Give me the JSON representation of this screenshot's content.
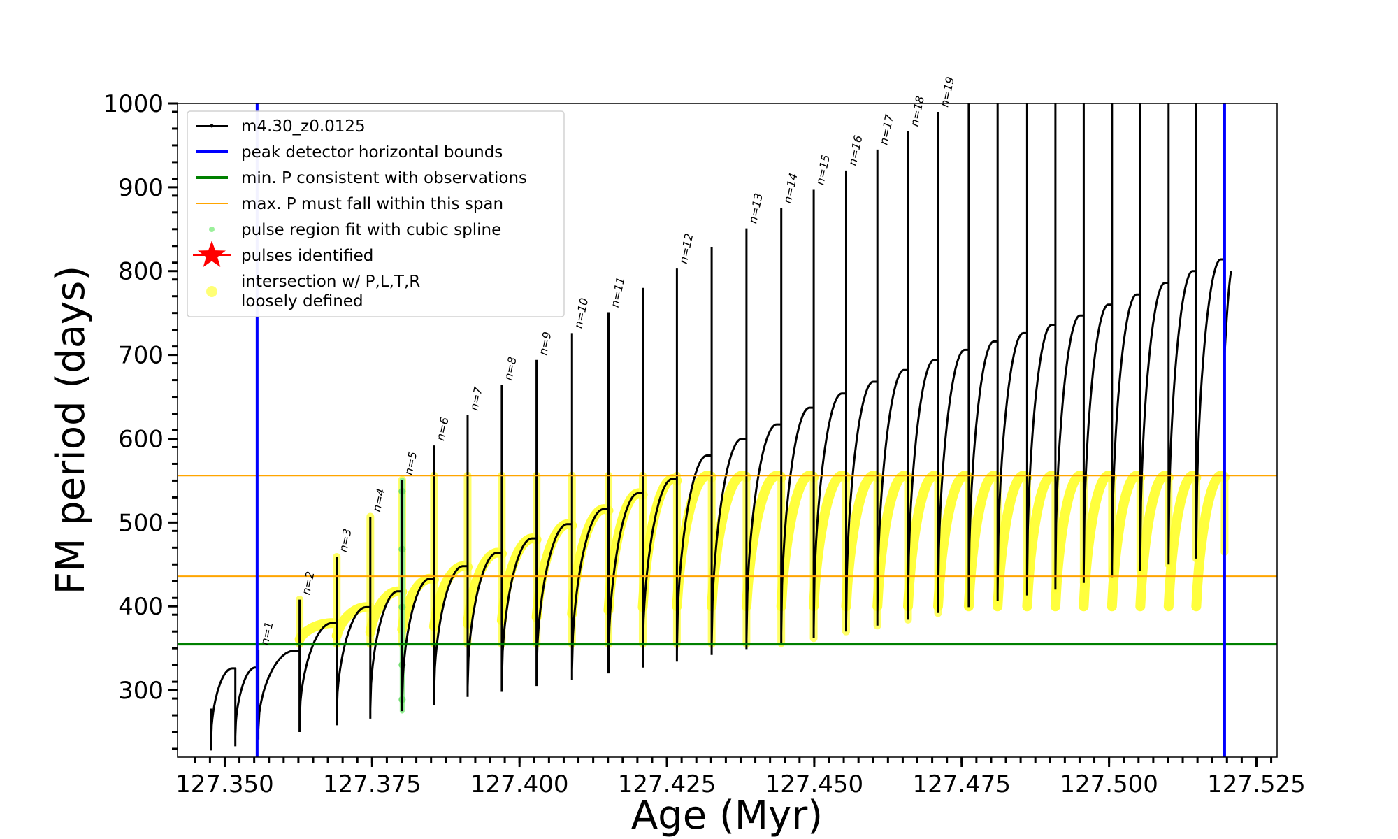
{
  "chart_data": {
    "type": "line",
    "title": "",
    "xlabel": "Age (Myr)",
    "ylabel": "FM period (days)",
    "xlim": [
      127.342,
      127.5285
    ],
    "ylim": [
      220,
      1000
    ],
    "x_ticks": [
      "127.350",
      "127.375",
      "127.400",
      "127.425",
      "127.450",
      "127.475",
      "127.500",
      "127.525"
    ],
    "y_ticks": [
      "300",
      "400",
      "500",
      "600",
      "700",
      "800",
      "900",
      "1000"
    ],
    "grid": false,
    "legend_position": "upper-left",
    "legend": [
      {
        "label": "m4.30_z0.0125",
        "style": "line-marker",
        "color": "#000000"
      },
      {
        "label": "peak detector horizontal bounds",
        "style": "line",
        "color": "#0000ff"
      },
      {
        "label": "min. P consistent with observations",
        "style": "line",
        "color": "#008000"
      },
      {
        "label": "max. P must fall within this span",
        "style": "thin-line",
        "color": "#ffa500"
      },
      {
        "label": "pulse region fit with cubic spline",
        "style": "dot",
        "color": "#90ee90"
      },
      {
        "label": "pulses identified",
        "style": "star",
        "color": "#ff0000"
      },
      {
        "label": "intersection w/ P,L,T,R",
        "label2": "loosely defined",
        "style": "dot",
        "color": "#ffff66"
      }
    ],
    "vertical_lines": [
      {
        "x": 127.3555,
        "color": "#0000ff"
      },
      {
        "x": 127.5196,
        "color": "#0000ff"
      }
    ],
    "horizontal_lines": [
      {
        "y": 355,
        "color": "#008000"
      },
      {
        "y": 436,
        "color": "#ffa500"
      },
      {
        "y": 556,
        "color": "#ffa500"
      }
    ],
    "pulses": [
      {
        "label": "",
        "x": 127.3477,
        "min": 228,
        "peak": 278,
        "top": 326
      },
      {
        "label": "",
        "x": 127.3518,
        "min": 233,
        "peak": 248,
        "top": 327
      },
      {
        "label": "n=1",
        "x": 127.3557,
        "min": 241,
        "peak": 348,
        "top": 347
      },
      {
        "label": "n=2",
        "x": 127.3627,
        "min": 250,
        "peak": 408,
        "top": 380
      },
      {
        "label": "n=3",
        "x": 127.369,
        "min": 258,
        "peak": 459,
        "top": 399
      },
      {
        "label": "n=4",
        "x": 127.3747,
        "min": 266,
        "peak": 507,
        "top": 418
      },
      {
        "label": "n=5",
        "x": 127.3801,
        "min": 275,
        "peak": 551,
        "top": 433
      },
      {
        "label": "n=6",
        "x": 127.3855,
        "min": 282,
        "peak": 592,
        "top": 448
      },
      {
        "label": "n=7",
        "x": 127.3912,
        "min": 292,
        "peak": 628,
        "top": 464
      },
      {
        "label": "n=8",
        "x": 127.397,
        "min": 298,
        "peak": 664,
        "top": 481
      },
      {
        "label": "n=9",
        "x": 127.4029,
        "min": 305,
        "peak": 694,
        "top": 498
      },
      {
        "label": "n=10",
        "x": 127.4089,
        "min": 312,
        "peak": 726,
        "top": 516
      },
      {
        "label": "n=11",
        "x": 127.4151,
        "min": 320,
        "peak": 751,
        "top": 535
      },
      {
        "label": "",
        "x": 127.4209,
        "min": 327,
        "peak": 780,
        "top": 552
      },
      {
        "label": "n=12",
        "x": 127.4267,
        "min": 334,
        "peak": 803,
        "top": 580
      },
      {
        "label": "",
        "x": 127.4326,
        "min": 342,
        "peak": 829,
        "top": 600
      },
      {
        "label": "n=13",
        "x": 127.4385,
        "min": 349,
        "peak": 851,
        "top": 617
      },
      {
        "label": "n=14",
        "x": 127.4444,
        "min": 356,
        "peak": 875,
        "top": 637
      },
      {
        "label": "n=15",
        "x": 127.4499,
        "min": 362,
        "peak": 897,
        "top": 654
      },
      {
        "label": "n=16",
        "x": 127.4554,
        "min": 370,
        "peak": 920,
        "top": 668
      },
      {
        "label": "n=17",
        "x": 127.4607,
        "min": 377,
        "peak": 945,
        "top": 682
      },
      {
        "label": "n=18",
        "x": 127.4659,
        "min": 384,
        "peak": 967,
        "top": 694
      },
      {
        "label": "n=19",
        "x": 127.471,
        "min": 392,
        "peak": 990,
        "top": 706
      },
      {
        "label": "",
        "x": 127.4762,
        "min": 399,
        "peak": 1000,
        "top": 716
      },
      {
        "label": "",
        "x": 127.4811,
        "min": 406,
        "peak": 1000,
        "top": 726
      },
      {
        "label": "",
        "x": 127.4861,
        "min": 413,
        "peak": 1000,
        "top": 736
      },
      {
        "label": "",
        "x": 127.4909,
        "min": 420,
        "peak": 1000,
        "top": 747
      },
      {
        "label": "",
        "x": 127.4957,
        "min": 428,
        "peak": 1000,
        "top": 760
      },
      {
        "label": "",
        "x": 127.5005,
        "min": 435,
        "peak": 1000,
        "top": 772
      },
      {
        "label": "",
        "x": 127.5053,
        "min": 442,
        "peak": 1000,
        "top": 786
      },
      {
        "label": "",
        "x": 127.5101,
        "min": 450,
        "peak": 1000,
        "top": 800
      },
      {
        "label": "",
        "x": 127.5148,
        "min": 457,
        "peak": 1000,
        "top": 814
      },
      {
        "label": "",
        "x": 127.5196,
        "min": 465,
        "peak": 1000,
        "top": 0
      }
    ],
    "final_point": {
      "x": 127.5207,
      "y": 800
    },
    "yellow_band": {
      "min_period": 355,
      "max_period": 556
    }
  }
}
